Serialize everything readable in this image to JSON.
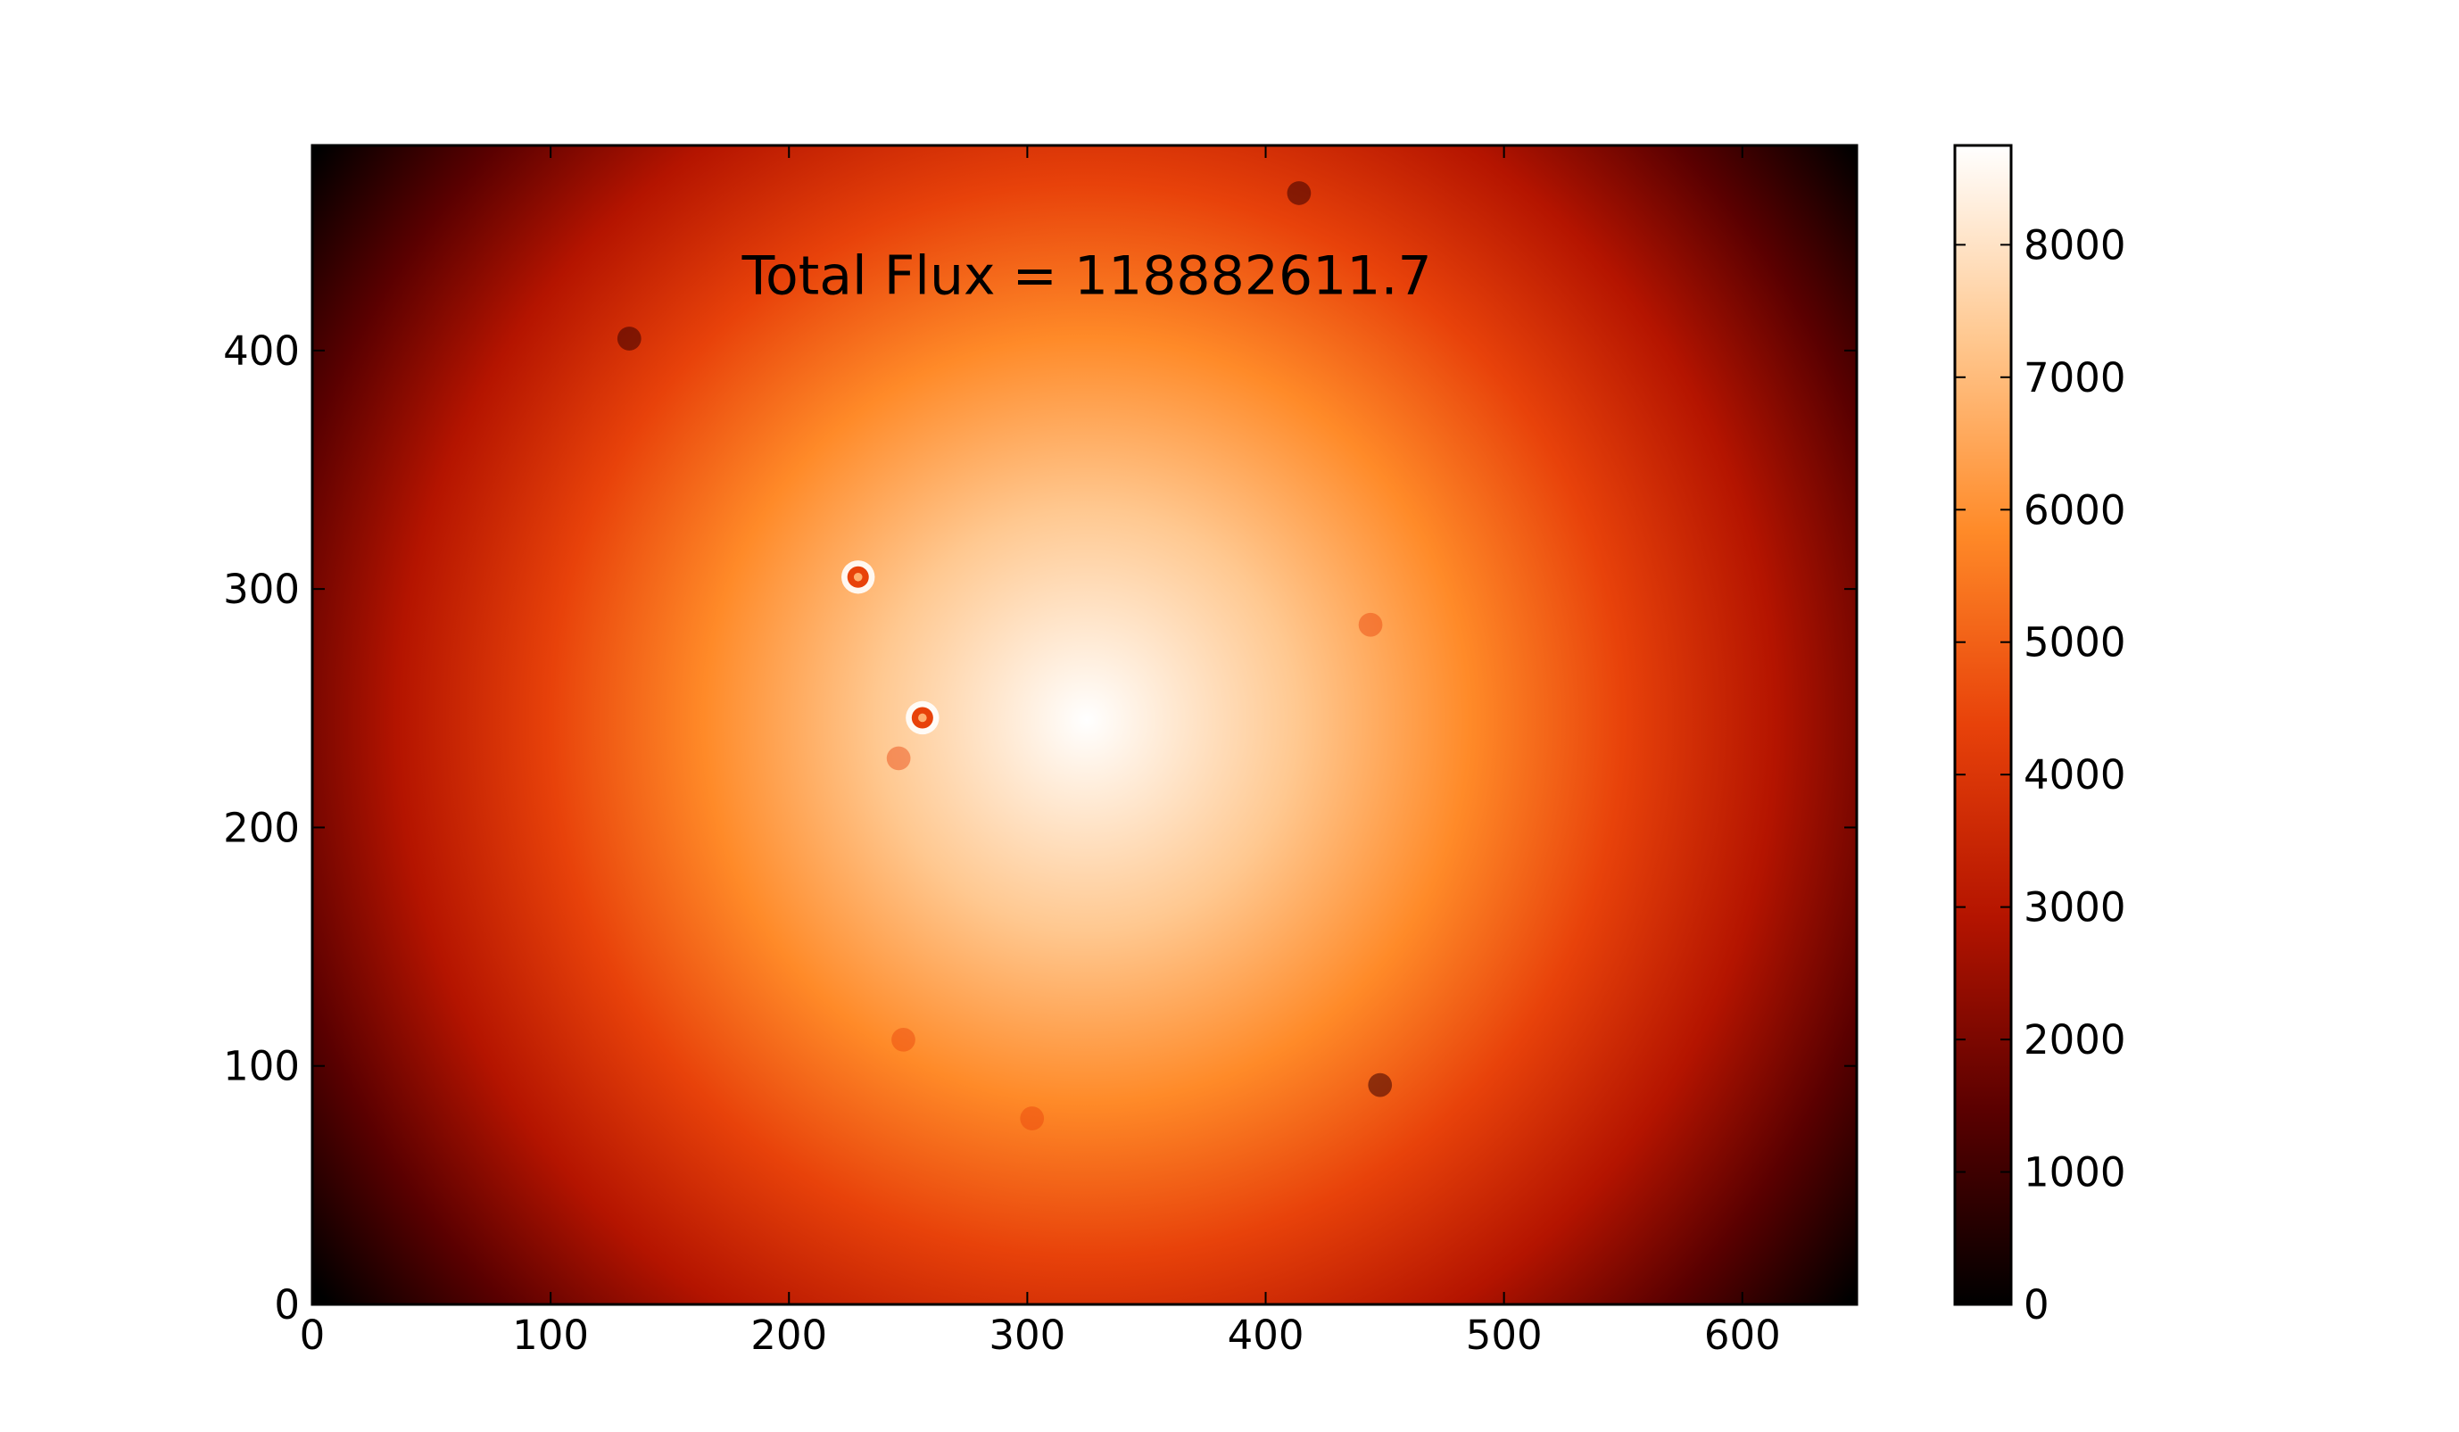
{
  "chart_data": {
    "type": "heatmap",
    "title": "",
    "xlabel": "",
    "ylabel": "",
    "xlim": [
      0,
      648
    ],
    "ylim": [
      0,
      486
    ],
    "x_ticks": [
      0,
      100,
      200,
      300,
      400,
      500,
      600
    ],
    "x_tick_labels": [
      "0",
      "100",
      "200",
      "300",
      "400",
      "500",
      "600"
    ],
    "y_ticks": [
      0,
      100,
      200,
      300,
      400
    ],
    "y_tick_labels": [
      "0",
      "100",
      "200",
      "300",
      "400"
    ],
    "colormap": "gist_heat",
    "colormap_stops": [
      "#000000",
      "#5a0000",
      "#b41400",
      "#e8420a",
      "#ff8a28",
      "#ffc890",
      "#ffffff"
    ],
    "colorbar": {
      "range": [
        0,
        8750
      ],
      "ticks": [
        0,
        1000,
        2000,
        3000,
        4000,
        5000,
        6000,
        7000,
        8000
      ],
      "tick_labels": [
        "0",
        "1000",
        "2000",
        "3000",
        "4000",
        "5000",
        "6000",
        "7000",
        "8000"
      ]
    },
    "peak_center": {
      "x": 325,
      "y": 245
    },
    "sources": [
      {
        "x": 229,
        "y": 305,
        "kind": "bright"
      },
      {
        "x": 256,
        "y": 246,
        "kind": "bright"
      },
      {
        "x": 444,
        "y": 285,
        "kind": "faint"
      },
      {
        "x": 246,
        "y": 229,
        "kind": "faint"
      },
      {
        "x": 414,
        "y": 466,
        "kind": "dark"
      },
      {
        "x": 133,
        "y": 405,
        "kind": "dark"
      },
      {
        "x": 448,
        "y": 92,
        "kind": "dark"
      },
      {
        "x": 302,
        "y": 78,
        "kind": "faint"
      },
      {
        "x": 248,
        "y": 111,
        "kind": "faint"
      }
    ],
    "annotations": [
      {
        "text": "Total Flux = 118882611.7",
        "x": 325,
        "y": 430
      }
    ]
  }
}
